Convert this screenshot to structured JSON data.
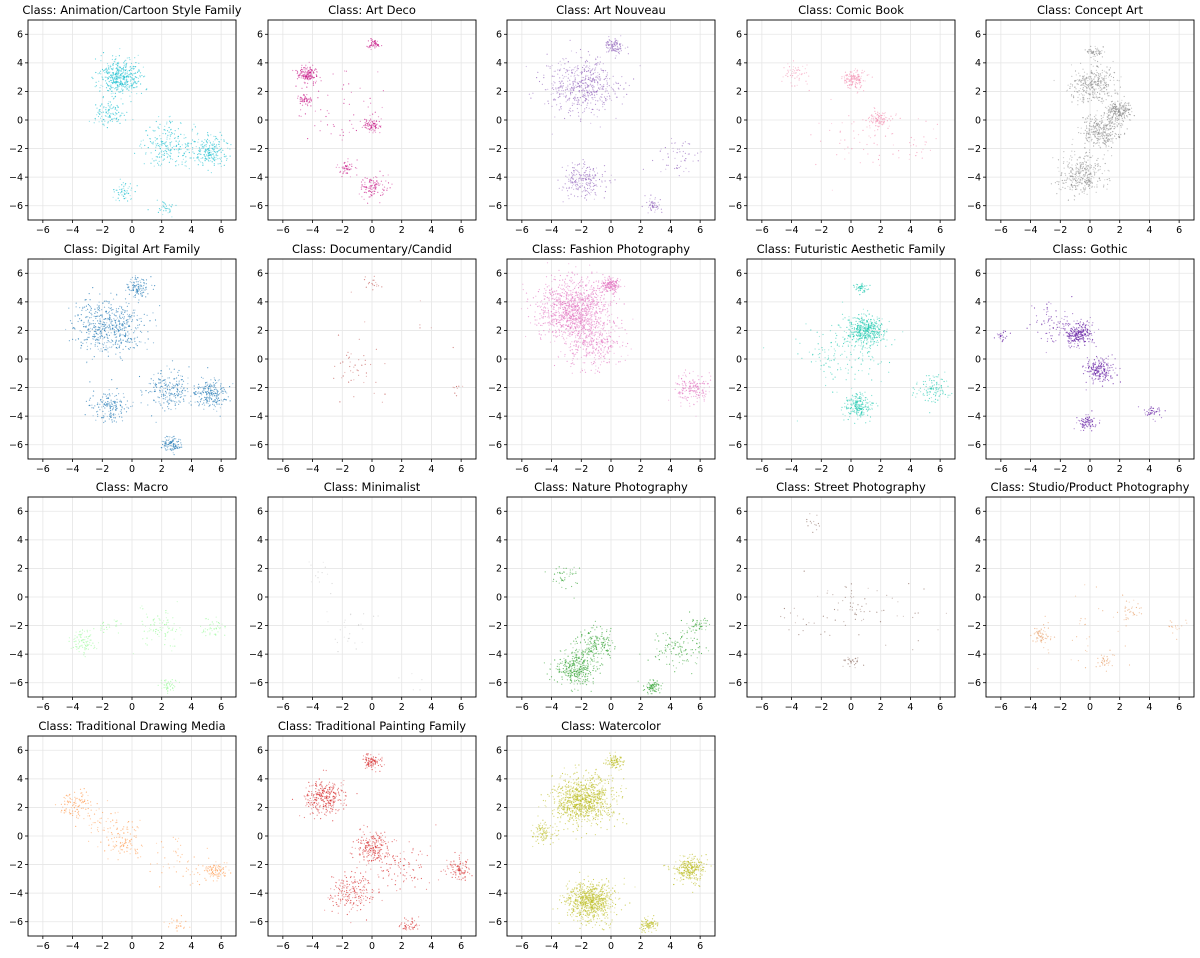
{
  "chart_data": {
    "type": "scatter",
    "xlim": [
      -7,
      7
    ],
    "ylim": [
      -7,
      7
    ],
    "xticks": [
      -6,
      -4,
      -2,
      0,
      2,
      4,
      6
    ],
    "yticks": [
      -6,
      -4,
      -2,
      0,
      2,
      4,
      6
    ],
    "grid": true,
    "panels": [
      {
        "title": "Class: Animation/Cartoon Style Family",
        "color": "#17becf",
        "density": 1.0,
        "clusters": [
          {
            "x": -0.8,
            "y": 3.0,
            "s": 0.7,
            "w": 4
          },
          {
            "x": -1.5,
            "y": 0.4,
            "s": 0.5,
            "w": 1
          },
          {
            "x": 2.5,
            "y": -1.8,
            "s": 0.9,
            "w": 2
          },
          {
            "x": 5.2,
            "y": -2.2,
            "s": 0.6,
            "w": 2
          },
          {
            "x": -0.6,
            "y": -5.0,
            "s": 0.4,
            "w": 0.5
          },
          {
            "x": 2.3,
            "y": -6.2,
            "s": 0.3,
            "w": 0.3
          }
        ]
      },
      {
        "title": "Class: Art Deco",
        "color": "#c71585",
        "density": 0.5,
        "clusters": [
          {
            "x": -4.3,
            "y": 3.2,
            "s": 0.35,
            "w": 3
          },
          {
            "x": -4.5,
            "y": 1.4,
            "s": 0.25,
            "w": 1
          },
          {
            "x": 0.1,
            "y": 5.3,
            "s": 0.2,
            "w": 1
          },
          {
            "x": 0.0,
            "y": -0.3,
            "s": 0.3,
            "w": 1.5
          },
          {
            "x": 0.2,
            "y": -4.7,
            "s": 0.5,
            "w": 2
          },
          {
            "x": -1.7,
            "y": -3.4,
            "s": 0.3,
            "w": 1
          },
          {
            "x": -2.0,
            "y": 0.8,
            "s": 1.5,
            "w": 1
          }
        ]
      },
      {
        "title": "Class: Art Nouveau",
        "color": "#9467bd",
        "density": 1.0,
        "clusters": [
          {
            "x": -2.0,
            "y": 2.4,
            "s": 1.2,
            "w": 5
          },
          {
            "x": 0.2,
            "y": 5.2,
            "s": 0.3,
            "w": 1
          },
          {
            "x": -1.8,
            "y": -4.2,
            "s": 0.7,
            "w": 2
          },
          {
            "x": 2.8,
            "y": -6.0,
            "s": 0.3,
            "w": 0.5
          },
          {
            "x": 4.5,
            "y": -2.5,
            "s": 0.8,
            "w": 0.5
          }
        ]
      },
      {
        "title": "Class: Comic Book",
        "color": "#f48fb1",
        "density": 0.45,
        "clusters": [
          {
            "x": 0.2,
            "y": 2.8,
            "s": 0.4,
            "w": 3
          },
          {
            "x": 1.8,
            "y": 0.0,
            "s": 0.4,
            "w": 2
          },
          {
            "x": -3.8,
            "y": 3.2,
            "s": 0.5,
            "w": 1
          },
          {
            "x": 0.5,
            "y": -1.5,
            "s": 1.5,
            "w": 1
          },
          {
            "x": 4.5,
            "y": -1.8,
            "s": 1.0,
            "w": 0.5
          }
        ]
      },
      {
        "title": "Class: Concept Art",
        "color": "#8c8c8c",
        "density": 1.0,
        "clusters": [
          {
            "x": 0.2,
            "y": 2.5,
            "s": 0.8,
            "w": 3
          },
          {
            "x": 2.0,
            "y": 0.6,
            "s": 0.4,
            "w": 2
          },
          {
            "x": 0.8,
            "y": -0.8,
            "s": 0.7,
            "w": 3
          },
          {
            "x": -0.6,
            "y": -3.8,
            "s": 0.8,
            "w": 3
          },
          {
            "x": 0.3,
            "y": 4.8,
            "s": 0.3,
            "w": 0.5
          }
        ]
      },
      {
        "title": "Class: Digital Art Family",
        "color": "#1f77b4",
        "density": 1.0,
        "clusters": [
          {
            "x": -1.5,
            "y": 2.2,
            "s": 1.1,
            "w": 5
          },
          {
            "x": 0.3,
            "y": 5.0,
            "s": 0.4,
            "w": 1
          },
          {
            "x": 2.5,
            "y": -2.2,
            "s": 0.8,
            "w": 2
          },
          {
            "x": 5.3,
            "y": -2.4,
            "s": 0.6,
            "w": 2
          },
          {
            "x": -1.5,
            "y": -3.3,
            "s": 0.7,
            "w": 1.5
          },
          {
            "x": 2.6,
            "y": -6.0,
            "s": 0.3,
            "w": 1
          }
        ]
      },
      {
        "title": "Class: Documentary/Candid",
        "color": "#c0504d",
        "density": 0.15,
        "clusters": [
          {
            "x": -1.0,
            "y": -0.6,
            "s": 0.6,
            "w": 2
          },
          {
            "x": 0.0,
            "y": 5.2,
            "s": 0.3,
            "w": 1
          },
          {
            "x": 5.8,
            "y": -2.0,
            "s": 0.3,
            "w": 0.5
          },
          {
            "x": 0.5,
            "y": 0.5,
            "s": 2.5,
            "w": 1
          }
        ]
      },
      {
        "title": "Class: Fashion Photography",
        "color": "#e377c2",
        "density": 1.7,
        "clusters": [
          {
            "x": -2.5,
            "y": 3.5,
            "s": 1.2,
            "w": 6
          },
          {
            "x": 0.0,
            "y": 5.2,
            "s": 0.3,
            "w": 1
          },
          {
            "x": -1.2,
            "y": 1.2,
            "s": 1.0,
            "w": 2
          },
          {
            "x": 5.5,
            "y": -2.0,
            "s": 0.6,
            "w": 1
          }
        ]
      },
      {
        "title": "Class: Futuristic Aesthetic Family",
        "color": "#20c9b0",
        "density": 1.0,
        "clusters": [
          {
            "x": 1.0,
            "y": 2.0,
            "s": 0.6,
            "w": 4
          },
          {
            "x": 0.5,
            "y": -3.3,
            "s": 0.5,
            "w": 2
          },
          {
            "x": -0.6,
            "y": 0.5,
            "s": 1.5,
            "w": 1.5
          },
          {
            "x": 5.5,
            "y": -2.2,
            "s": 0.6,
            "w": 1
          },
          {
            "x": 0.7,
            "y": 5.0,
            "s": 0.2,
            "w": 0.5
          }
        ]
      },
      {
        "title": "Class: Gothic",
        "color": "#5b0f9e",
        "density": 0.75,
        "clusters": [
          {
            "x": -0.7,
            "y": 1.8,
            "s": 0.5,
            "w": 3
          },
          {
            "x": 0.7,
            "y": -0.8,
            "s": 0.5,
            "w": 2.5
          },
          {
            "x": -0.2,
            "y": -4.5,
            "s": 0.3,
            "w": 1
          },
          {
            "x": -2.5,
            "y": 2.5,
            "s": 0.8,
            "w": 1
          },
          {
            "x": 4.2,
            "y": -3.7,
            "s": 0.3,
            "w": 0.5
          },
          {
            "x": -6.0,
            "y": 1.6,
            "s": 0.2,
            "w": 0.3
          }
        ]
      },
      {
        "title": "Class: Macro",
        "color": "#98fb98",
        "density": 0.4,
        "clusters": [
          {
            "x": -3.3,
            "y": -3.2,
            "s": 0.5,
            "w": 2
          },
          {
            "x": 2.0,
            "y": -2.2,
            "s": 0.8,
            "w": 2
          },
          {
            "x": 5.5,
            "y": -2.2,
            "s": 0.4,
            "w": 1
          },
          {
            "x": 2.5,
            "y": -6.2,
            "s": 0.3,
            "w": 1
          },
          {
            "x": -1.5,
            "y": -2.0,
            "s": 0.4,
            "w": 0.5
          }
        ]
      },
      {
        "title": "Class: Minimalist",
        "color": "#c8c8c8",
        "density": 0.12,
        "clusters": [
          {
            "x": -1.5,
            "y": -2.5,
            "s": 0.9,
            "w": 2
          },
          {
            "x": -3.5,
            "y": 1.5,
            "s": 0.7,
            "w": 1
          },
          {
            "x": 2.5,
            "y": -6.2,
            "s": 0.6,
            "w": 0.5
          }
        ]
      },
      {
        "title": "Class: Nature Photography",
        "color": "#2ca02c",
        "density": 0.8,
        "clusters": [
          {
            "x": -2.4,
            "y": -5.0,
            "s": 0.7,
            "w": 4
          },
          {
            "x": -1.0,
            "y": -3.3,
            "s": 0.6,
            "w": 2
          },
          {
            "x": 2.8,
            "y": -6.3,
            "s": 0.3,
            "w": 1
          },
          {
            "x": 4.5,
            "y": -3.5,
            "s": 1.0,
            "w": 1.5
          },
          {
            "x": -3.0,
            "y": 1.5,
            "s": 0.6,
            "w": 0.5
          },
          {
            "x": 6.0,
            "y": -2.0,
            "s": 0.3,
            "w": 0.4
          }
        ]
      },
      {
        "title": "Class: Street Photography",
        "color": "#8c6d62",
        "density": 0.25,
        "clusters": [
          {
            "x": 0.0,
            "y": -0.5,
            "s": 1.2,
            "w": 2
          },
          {
            "x": 0.0,
            "y": -4.5,
            "s": 0.3,
            "w": 1
          },
          {
            "x": -2.5,
            "y": 5.0,
            "s": 0.4,
            "w": 0.5
          },
          {
            "x": -3.8,
            "y": -1.8,
            "s": 0.6,
            "w": 0.5
          },
          {
            "x": 3.0,
            "y": -1.5,
            "s": 1.5,
            "w": 0.5
          }
        ]
      },
      {
        "title": "Class: Studio/Product Photography",
        "color": "#e8a06a",
        "density": 0.3,
        "clusters": [
          {
            "x": -3.3,
            "y": -2.8,
            "s": 0.4,
            "w": 2
          },
          {
            "x": 1.0,
            "y": -4.5,
            "s": 0.3,
            "w": 1
          },
          {
            "x": 2.8,
            "y": -1.0,
            "s": 0.5,
            "w": 1
          },
          {
            "x": 0.0,
            "y": -2.0,
            "s": 2.0,
            "w": 1
          },
          {
            "x": 5.5,
            "y": -2.0,
            "s": 0.4,
            "w": 0.5
          }
        ]
      },
      {
        "title": "Class: Traditional Drawing Media",
        "color": "#ff9a4d",
        "density": 0.45,
        "clusters": [
          {
            "x": -3.8,
            "y": 2.3,
            "s": 0.6,
            "w": 2
          },
          {
            "x": -0.5,
            "y": -0.5,
            "s": 0.7,
            "w": 2
          },
          {
            "x": 5.6,
            "y": -2.4,
            "s": 0.4,
            "w": 2
          },
          {
            "x": 3.0,
            "y": -1.8,
            "s": 1.0,
            "w": 1
          },
          {
            "x": 3.0,
            "y": -6.2,
            "s": 0.3,
            "w": 0.5
          },
          {
            "x": -2.0,
            "y": 1.0,
            "s": 0.8,
            "w": 1
          }
        ]
      },
      {
        "title": "Class: Traditional Painting Family",
        "color": "#d62728",
        "density": 0.9,
        "clusters": [
          {
            "x": -3.2,
            "y": 2.8,
            "s": 0.7,
            "w": 3
          },
          {
            "x": 0.0,
            "y": 5.2,
            "s": 0.3,
            "w": 1
          },
          {
            "x": 0.0,
            "y": -0.8,
            "s": 0.6,
            "w": 2
          },
          {
            "x": -1.3,
            "y": -4.0,
            "s": 0.8,
            "w": 2
          },
          {
            "x": 5.8,
            "y": -2.3,
            "s": 0.4,
            "w": 1
          },
          {
            "x": 2.5,
            "y": -6.3,
            "s": 0.3,
            "w": 0.5
          },
          {
            "x": 2.0,
            "y": -2.0,
            "s": 1.0,
            "w": 1
          }
        ]
      },
      {
        "title": "Class: Watercolor",
        "color": "#bcbd22",
        "density": 1.8,
        "clusters": [
          {
            "x": -1.8,
            "y": 2.5,
            "s": 1.0,
            "w": 5
          },
          {
            "x": -1.4,
            "y": -4.6,
            "s": 0.8,
            "w": 4
          },
          {
            "x": 5.2,
            "y": -2.3,
            "s": 0.5,
            "w": 1.5
          },
          {
            "x": 2.5,
            "y": -6.2,
            "s": 0.3,
            "w": 0.5
          },
          {
            "x": -4.5,
            "y": 0.2,
            "s": 0.4,
            "w": 0.5
          },
          {
            "x": 0.3,
            "y": 5.2,
            "s": 0.3,
            "w": 0.5
          }
        ]
      }
    ]
  }
}
